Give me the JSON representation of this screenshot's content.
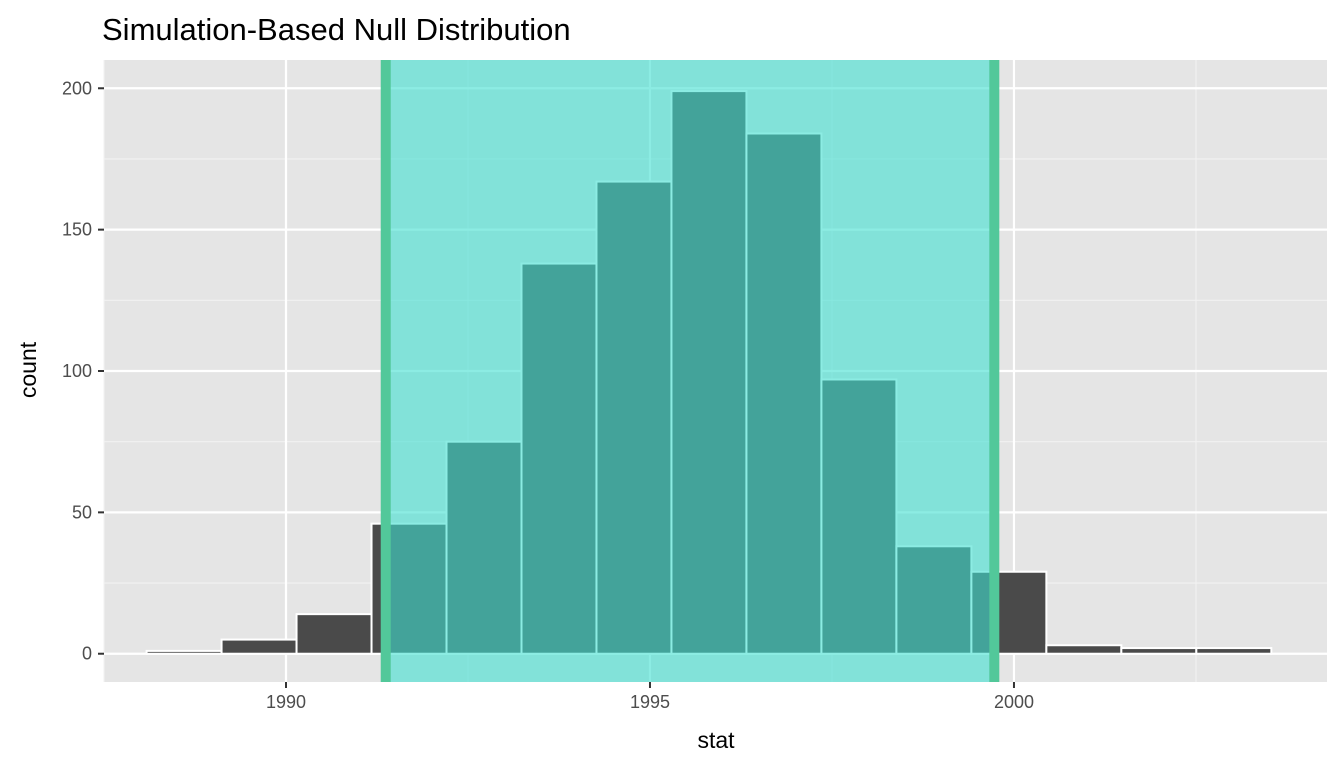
{
  "title": "Simulation-Based Null Distribution",
  "colors": {
    "panel_bg": "#e5e5e5",
    "grid_major": "#ffffff",
    "grid_minor": "#f2f2f2",
    "bar_fill": "#4a4a4a",
    "bar_outline": "#ffffff",
    "shade_fill": "#40e0d0",
    "shade_opacity": 0.6,
    "endpoint_line": "#52c89a",
    "tick_text": "#4d4d4d",
    "tick_mark": "#333333"
  },
  "chart_data": {
    "type": "bar",
    "title": "Simulation-Based Null Distribution",
    "xlabel": "stat",
    "ylabel": "count",
    "xlim": [
      1987.5,
      2004.3
    ],
    "ylim": [
      -10,
      210
    ],
    "x_ticks": [
      1990,
      1995,
      2000
    ],
    "x_tick_labels": [
      "1990",
      "1995",
      "2000"
    ],
    "y_ticks": [
      0,
      50,
      100,
      150,
      200
    ],
    "y_tick_labels": [
      "0",
      "50",
      "100",
      "150",
      "200"
    ],
    "x_minor_ticks": [
      1987.5,
      1992.5,
      1997.5,
      2002.5
    ],
    "y_minor_ticks": [
      25,
      75,
      125,
      175
    ],
    "grid": true,
    "bin_width": 1.03,
    "bins": [
      {
        "center": 1988.6,
        "count": 1
      },
      {
        "center": 1989.63,
        "count": 5
      },
      {
        "center": 1990.66,
        "count": 14
      },
      {
        "center": 1991.69,
        "count": 46
      },
      {
        "center": 1992.72,
        "count": 75
      },
      {
        "center": 1993.75,
        "count": 138
      },
      {
        "center": 1994.78,
        "count": 167
      },
      {
        "center": 1995.81,
        "count": 199
      },
      {
        "center": 1996.84,
        "count": 184
      },
      {
        "center": 1997.87,
        "count": 97
      },
      {
        "center": 1998.9,
        "count": 38
      },
      {
        "center": 1999.93,
        "count": 29
      },
      {
        "center": 2000.96,
        "count": 3
      },
      {
        "center": 2001.99,
        "count": 2
      },
      {
        "center": 2003.02,
        "count": 2
      }
    ],
    "shaded_interval": [
      1991.37,
      1999.73
    ]
  }
}
